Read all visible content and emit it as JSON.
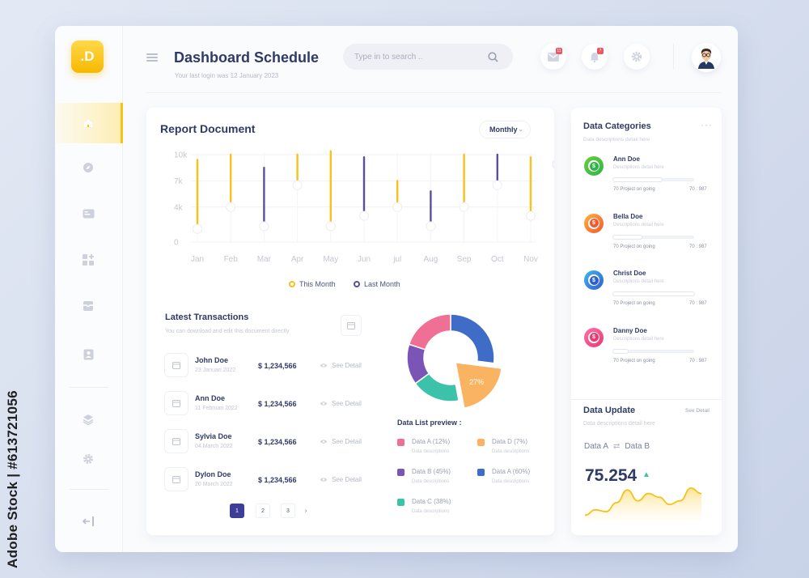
{
  "watermark": {
    "stock_label": "Adobe Stock | #613721056"
  },
  "app": {
    "logo": ".D",
    "title": "Dashboard Schedule",
    "subtitle": "Your last login was 12 January 2023",
    "search_placeholder": "Type in to search ..",
    "mail_badge": "11",
    "bell_badge": "7"
  },
  "sidebar": {
    "items": [
      {
        "icon": "home-icon",
        "active": true
      },
      {
        "icon": "compass-icon",
        "active": false
      },
      {
        "icon": "card-icon",
        "active": false
      },
      {
        "icon": "apps-icon",
        "active": false
      },
      {
        "icon": "inbox-icon",
        "active": false
      },
      {
        "icon": "contact-icon",
        "active": false
      },
      {
        "icon": "layers-icon",
        "active": false
      },
      {
        "icon": "gear-icon",
        "active": false
      },
      {
        "icon": "logout-icon",
        "active": false
      }
    ]
  },
  "report": {
    "title": "Report Document",
    "period": "Monthly",
    "legend_this": "This Month",
    "legend_last": "Last Month"
  },
  "chart_data": {
    "type": "bar",
    "categories": [
      "Jan",
      "Feb",
      "Mar",
      "Apr",
      "May",
      "Jun",
      "jul",
      "Aug",
      "Sep",
      "Oct",
      "Nov"
    ],
    "y_ticks": [
      "0",
      "4k",
      "7k",
      "10k"
    ],
    "ylim": [
      0,
      10000
    ],
    "series": [
      {
        "name": "This Month",
        "color": "#f7c21a",
        "ranges": [
          [
            1500,
            9400
          ],
          [
            4000,
            10000
          ],
          null,
          [
            6500,
            10000
          ],
          [
            1500,
            10400
          ],
          null,
          [
            4000,
            7000
          ],
          null,
          [
            4000,
            10000
          ],
          null,
          [
            3000,
            9700
          ]
        ]
      },
      {
        "name": "Last Month",
        "color": "#5b4f9c",
        "ranges": [
          null,
          null,
          [
            2000,
            8500
          ],
          null,
          null,
          [
            3000,
            9700
          ],
          null,
          [
            1800,
            5800
          ],
          null,
          [
            6500,
            10000
          ],
          null
        ]
      }
    ],
    "markers": [
      1500,
      4000,
      1800,
      6500,
      1800,
      3000,
      4000,
      1800,
      4000,
      6500,
      3000
    ]
  },
  "transactions": {
    "title": "Latest Transactions",
    "subtitle": "You can download and edit this document directly",
    "action": "See Detail",
    "rows": [
      {
        "name": "John Doe",
        "date": "23 Januari 2022",
        "amount": "$ 1,234,566"
      },
      {
        "name": "Ann Doe",
        "date": "11 Februari 2022",
        "amount": "$ 1,234,566"
      },
      {
        "name": "Sylvia Doe",
        "date": "04 March 2022",
        "amount": "$ 1,234,566"
      },
      {
        "name": "Dylon Doe",
        "date": "20 March 2022",
        "amount": "$ 1,234,566"
      }
    ],
    "pages": [
      "1",
      "2",
      "3"
    ],
    "next": "›"
  },
  "donut": {
    "center_label": "27%",
    "slices": [
      {
        "label": "Data A",
        "value": 27,
        "color": "#3f6cc6"
      },
      {
        "label": "Data D",
        "value": 20,
        "color": "#f9b361"
      },
      {
        "label": "Data C",
        "value": 18,
        "color": "#3cc2a8"
      },
      {
        "label": "Data B",
        "value": 15,
        "color": "#7b55b5"
      },
      {
        "label": "Data A",
        "value": 20,
        "color": "#f06f95"
      }
    ]
  },
  "data_list": {
    "title": "Data List preview :",
    "items": [
      {
        "label": "Data A (12%)",
        "desc": "Data descriptions",
        "color": "#f06f95"
      },
      {
        "label": "Data D (7%)",
        "desc": "Data descriptions",
        "color": "#f9b361"
      },
      {
        "label": "Data B (45%)",
        "desc": "Data descriptions",
        "color": "#7b55b5"
      },
      {
        "label": "Data A (60%)",
        "desc": "Data descriptions",
        "color": "#3f6cc6"
      },
      {
        "label": "Data C (38%)",
        "desc": "Data descriptions",
        "color": "#3cc2a8"
      }
    ]
  },
  "categories": {
    "title": "Data Categories",
    "subtitle": "Data descriptions detail here",
    "more": "···",
    "items": [
      {
        "name": "Ann Doe",
        "desc": "Descriptions detail here",
        "meta": "70 Project on going",
        "ratio": "70 : 987",
        "progress": 0.6,
        "color1": "#6fce3a",
        "color2": "#2fb34a"
      },
      {
        "name": "Bella Doe",
        "desc": "Descriptions detail here",
        "meta": "70 Project on going",
        "ratio": "70 : 987",
        "progress": 0.35,
        "color1": "#ffb23f",
        "color2": "#f2582e"
      },
      {
        "name": "Christ Doe",
        "desc": "Descriptions detail here",
        "meta": "70 Project on going",
        "ratio": "70 : 987",
        "progress": 1.0,
        "color1": "#43b5f0",
        "color2": "#2f5fcf"
      },
      {
        "name": "Danny Doe",
        "desc": "Descriptions detail here",
        "meta": "70 Project on going",
        "ratio": "70 : 987",
        "progress": 0.18,
        "color1": "#ff6fa8",
        "color2": "#e73a72"
      }
    ]
  },
  "update": {
    "title": "Data Update",
    "subtitle": "Data descriptions detail here",
    "see": "See Detail",
    "from": "Data A",
    "to": "Data B",
    "value": "75.254",
    "spark": [
      2,
      5,
      4,
      9,
      16,
      10,
      14,
      12,
      8,
      10,
      17,
      14
    ]
  }
}
